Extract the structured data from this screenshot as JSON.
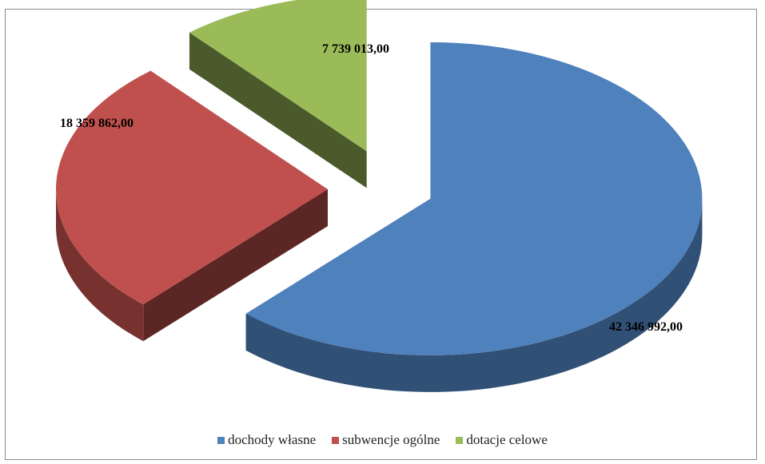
{
  "chart_data": {
    "type": "pie",
    "style": "3d-exploded",
    "categories": [
      "dochody własne",
      "subwencje ogólne",
      "dotacje celowe"
    ],
    "values": [
      42346992.0,
      18359862.0,
      7739013.0
    ],
    "value_labels": [
      "42 346 992,00",
      "18 359 862,00",
      "7 739 013,00"
    ],
    "colors": [
      "#4f81bd",
      "#c0504d",
      "#9bbb59"
    ],
    "legend_position": "bottom",
    "title": ""
  }
}
